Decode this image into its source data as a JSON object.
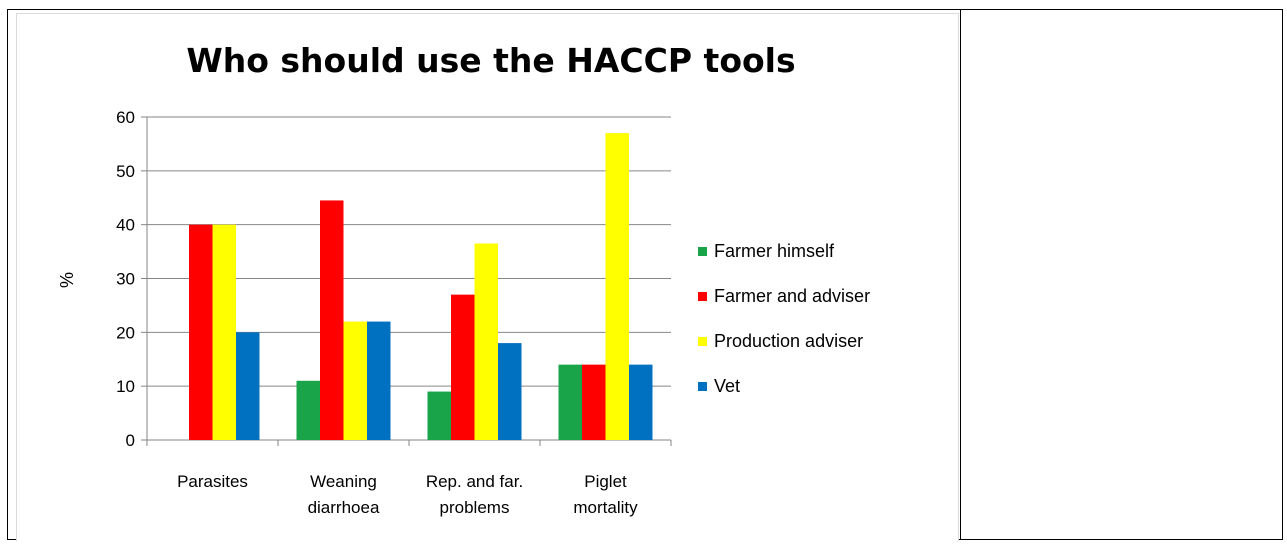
{
  "chart_data": {
    "type": "bar",
    "title": "Who should use the HACCP tools",
    "xlabel": "",
    "ylabel": "%",
    "ylim": [
      0,
      60
    ],
    "yticks": [
      0,
      10,
      20,
      30,
      40,
      50,
      60
    ],
    "grid": true,
    "legend_position": "right",
    "categories": [
      [
        "Parasites"
      ],
      [
        "Weaning",
        "diarrhoea"
      ],
      [
        "Rep. and far.",
        "problems"
      ],
      [
        "Piglet",
        "mortality"
      ]
    ],
    "series": [
      {
        "name": "Farmer himself",
        "color": "#1aa44a",
        "values": [
          0,
          11,
          9,
          14
        ]
      },
      {
        "name": "Farmer and adviser",
        "color": "#ff0000",
        "values": [
          40,
          44.5,
          27,
          14
        ]
      },
      {
        "name": "Production adviser",
        "color": "#ffff00",
        "values": [
          40,
          22,
          36.5,
          57
        ]
      },
      {
        "name": "Vet",
        "color": "#0070c0",
        "values": [
          20,
          22,
          18,
          14
        ]
      }
    ]
  }
}
